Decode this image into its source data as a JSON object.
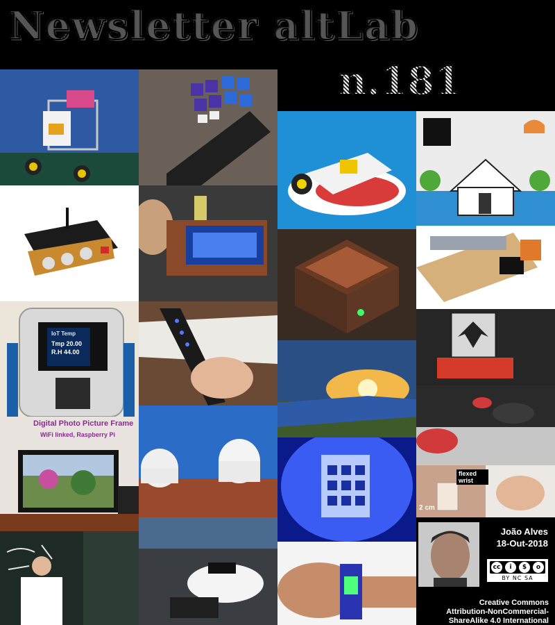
{
  "header": {
    "title": "Newsletter altLab",
    "issue": "n.181"
  },
  "tiles": {
    "photo_frame": {
      "line1": "Digital Photo Picture Frame",
      "line2": "WiFi linked, Raspberry Pi"
    },
    "iot": {
      "label": "IoT Temp",
      "temp": "Tmp 20.00",
      "hum": "R.H 44.00"
    },
    "wrist": {
      "label": "flexed wrist",
      "scale": "2 cm"
    }
  },
  "author": {
    "name": "João Alves",
    "date": "18-Out-2018"
  },
  "license": {
    "badge_glyphs": [
      "cc",
      "i",
      "$",
      "o"
    ],
    "badge_label": "BY  NC  SA",
    "line1": "Creative Commons",
    "line2": "Attribution-NonCommercial-",
    "line3": "ShareAlike 4.0 International"
  },
  "colors": {
    "background": "#000000",
    "title": "#ffffff",
    "photo_frame_text": "#8a2b8f"
  }
}
